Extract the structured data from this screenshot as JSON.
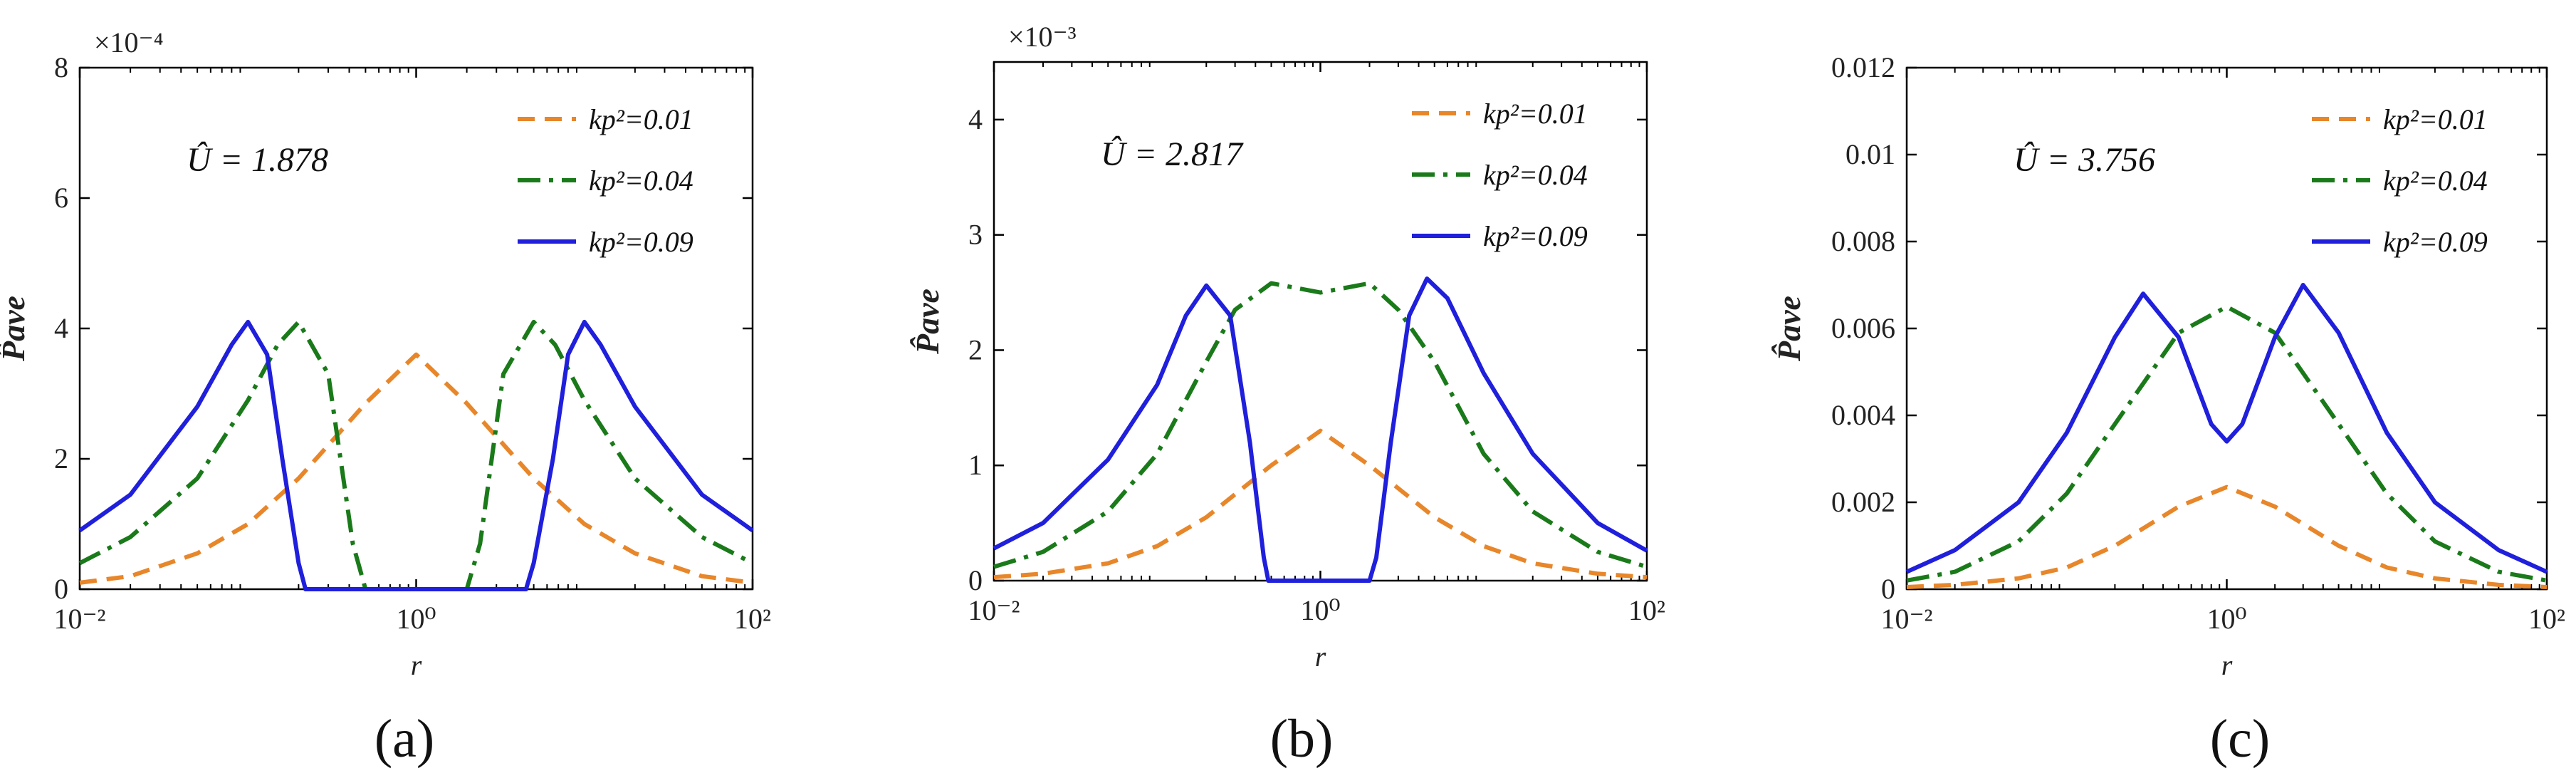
{
  "figure": {
    "panels": [
      "(a)",
      "(b)",
      "(c)"
    ]
  },
  "chart_data": [
    {
      "type": "line",
      "panel_label": "(a)",
      "xscale": "log",
      "xlim": [
        0.01,
        100
      ],
      "ylim": [
        0,
        8
      ],
      "scale_label": "×10⁻⁴",
      "xlabel": "r",
      "ylabel": "P̂ave",
      "x_ticks": [
        "10⁻²",
        "10⁰",
        "10²"
      ],
      "y_ticks": [
        "0",
        "2",
        "4",
        "6",
        "8"
      ],
      "annotation": "Û = 1.878",
      "legend_position": "top-right",
      "series": [
        {
          "name": "kp²=0.01",
          "legend_label": "kp²=0.01",
          "color": "#e8862a",
          "style": "dash",
          "x": [
            0.01,
            0.02,
            0.05,
            0.1,
            0.2,
            0.5,
            1,
            2,
            5,
            10,
            20,
            50,
            100
          ],
          "y": [
            0.1,
            0.2,
            0.55,
            1.0,
            1.7,
            2.85,
            3.6,
            2.85,
            1.7,
            1.0,
            0.55,
            0.2,
            0.1
          ]
        },
        {
          "name": "kp²=0.04",
          "legend_label": "kp²=0.04",
          "color": "#1a7a1a",
          "style": "dashdot",
          "x": [
            0.01,
            0.02,
            0.05,
            0.1,
            0.15,
            0.2,
            0.3,
            0.42,
            0.5,
            2.0,
            2.4,
            3.3,
            5,
            6.7,
            10,
            20,
            50,
            100
          ],
          "y": [
            0.4,
            0.8,
            1.7,
            2.9,
            3.75,
            4.1,
            3.3,
            0.7,
            0,
            0,
            0.7,
            3.3,
            4.1,
            3.75,
            2.9,
            1.7,
            0.8,
            0.4
          ]
        },
        {
          "name": "kp²=0.09",
          "legend_label": "kp²=0.09",
          "color": "#1f1fdc",
          "style": "solid",
          "x": [
            0.01,
            0.02,
            0.05,
            0.08,
            0.1,
            0.13,
            0.16,
            0.2,
            0.22,
            4.5,
            5,
            6.5,
            8,
            10,
            12.5,
            20,
            50,
            100
          ],
          "y": [
            0.9,
            1.45,
            2.8,
            3.75,
            4.1,
            3.6,
            2.0,
            0.4,
            0,
            0,
            0.4,
            2.0,
            3.6,
            4.1,
            3.75,
            2.8,
            1.45,
            0.9
          ]
        }
      ]
    },
    {
      "type": "line",
      "panel_label": "(b)",
      "xscale": "log",
      "xlim": [
        0.01,
        100
      ],
      "ylim": [
        0,
        4.5
      ],
      "scale_label": "×10⁻³",
      "xlabel": "r",
      "ylabel": "P̂ave",
      "x_ticks": [
        "10⁻²",
        "10⁰",
        "10²"
      ],
      "y_ticks": [
        "0",
        "1",
        "2",
        "3",
        "4"
      ],
      "annotation": "Û = 2.817",
      "legend_position": "top-right",
      "series": [
        {
          "name": "kp²=0.01",
          "legend_label": "kp²=0.01",
          "color": "#e8862a",
          "style": "dash",
          "x": [
            0.01,
            0.02,
            0.05,
            0.1,
            0.2,
            0.5,
            1,
            2,
            5,
            10,
            20,
            50,
            100
          ],
          "y": [
            0.03,
            0.06,
            0.15,
            0.3,
            0.55,
            1.0,
            1.3,
            1.0,
            0.55,
            0.3,
            0.15,
            0.06,
            0.03
          ]
        },
        {
          "name": "kp²=0.04",
          "legend_label": "kp²=0.04",
          "color": "#1a7a1a",
          "style": "dashdot",
          "x": [
            0.01,
            0.02,
            0.05,
            0.1,
            0.2,
            0.3,
            0.5,
            1,
            2,
            3,
            5,
            10,
            20,
            50,
            100
          ],
          "y": [
            0.12,
            0.25,
            0.6,
            1.1,
            1.9,
            2.35,
            2.58,
            2.5,
            2.58,
            2.35,
            1.9,
            1.1,
            0.6,
            0.25,
            0.12
          ]
        },
        {
          "name": "kp²=0.09",
          "legend_label": "kp²=0.09",
          "color": "#1f1fdc",
          "style": "solid",
          "x": [
            0.01,
            0.02,
            0.05,
            0.1,
            0.15,
            0.2,
            0.28,
            0.37,
            0.45,
            0.48,
            2.0,
            2.2,
            2.7,
            3.5,
            4.5,
            6,
            10,
            20,
            50,
            100
          ],
          "y": [
            0.28,
            0.5,
            1.05,
            1.7,
            2.3,
            2.56,
            2.3,
            1.2,
            0.2,
            0,
            0,
            0.2,
            1.2,
            2.3,
            2.62,
            2.45,
            1.8,
            1.1,
            0.5,
            0.26
          ]
        }
      ]
    },
    {
      "type": "line",
      "panel_label": "(c)",
      "xscale": "log",
      "xlim": [
        0.01,
        100
      ],
      "ylim": [
        0,
        0.012
      ],
      "scale_label": "",
      "xlabel": "r",
      "ylabel": "P̂ave",
      "x_ticks": [
        "10⁻²",
        "10⁰",
        "10²"
      ],
      "y_ticks": [
        "0",
        "0.002",
        "0.004",
        "0.006",
        "0.008",
        "0.01",
        "0.012"
      ],
      "annotation": "Û = 3.756",
      "legend_position": "top-right",
      "series": [
        {
          "name": "kp²=0.01",
          "legend_label": "kp²=0.01",
          "color": "#e8862a",
          "style": "dash",
          "x": [
            0.01,
            0.02,
            0.05,
            0.1,
            0.2,
            0.5,
            1,
            2,
            5,
            10,
            20,
            50,
            100
          ],
          "y": [
            5e-05,
            0.0001,
            0.00025,
            0.0005,
            0.001,
            0.0019,
            0.00235,
            0.0019,
            0.001,
            0.0005,
            0.00025,
            0.0001,
            5e-05
          ]
        },
        {
          "name": "kp²=0.04",
          "legend_label": "kp²=0.04",
          "color": "#1a7a1a",
          "style": "dashdot",
          "x": [
            0.01,
            0.02,
            0.05,
            0.1,
            0.2,
            0.5,
            1,
            2,
            5,
            10,
            20,
            50,
            100
          ],
          "y": [
            0.0002,
            0.0004,
            0.0011,
            0.0022,
            0.0038,
            0.0059,
            0.0065,
            0.0059,
            0.0038,
            0.0022,
            0.0011,
            0.0004,
            0.0002
          ]
        },
        {
          "name": "kp²=0.09",
          "legend_label": "kp²=0.09",
          "color": "#1f1fdc",
          "style": "solid",
          "x": [
            0.01,
            0.02,
            0.05,
            0.1,
            0.2,
            0.3,
            0.5,
            0.8,
            1,
            1.25,
            2,
            3,
            5,
            10,
            20,
            50,
            100
          ],
          "y": [
            0.0004,
            0.0009,
            0.002,
            0.0036,
            0.0058,
            0.0068,
            0.0058,
            0.0038,
            0.0034,
            0.0038,
            0.0058,
            0.007,
            0.0059,
            0.0036,
            0.002,
            0.0009,
            0.0004
          ]
        }
      ]
    }
  ]
}
